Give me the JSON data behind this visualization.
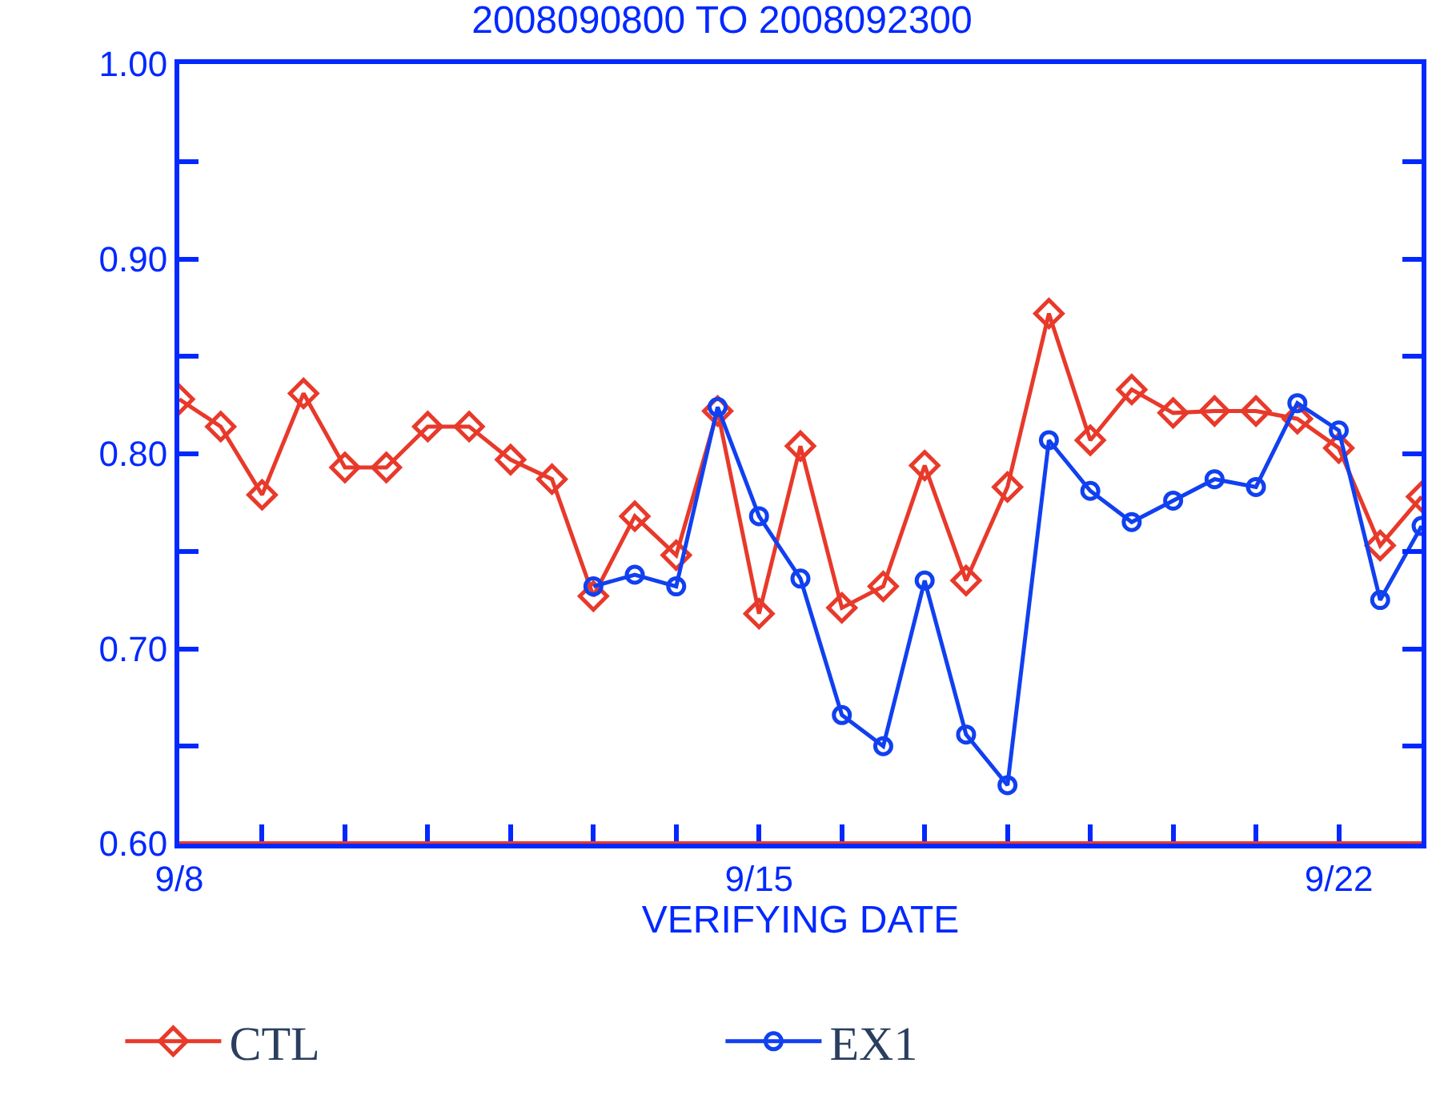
{
  "chart_data": {
    "type": "line",
    "title": "2008090800 TO 2008092300",
    "xlabel": "VERIFYING DATE",
    "x": [
      "2008-09-08T00:00",
      "2008-09-08T12:00",
      "2008-09-09T00:00",
      "2008-09-09T12:00",
      "2008-09-10T00:00",
      "2008-09-10T12:00",
      "2008-09-11T00:00",
      "2008-09-11T12:00",
      "2008-09-12T00:00",
      "2008-09-12T12:00",
      "2008-09-13T00:00",
      "2008-09-13T12:00",
      "2008-09-14T00:00",
      "2008-09-14T12:00",
      "2008-09-15T00:00",
      "2008-09-15T12:00",
      "2008-09-16T00:00",
      "2008-09-16T12:00",
      "2008-09-17T00:00",
      "2008-09-17T12:00",
      "2008-09-18T00:00",
      "2008-09-18T12:00",
      "2008-09-19T00:00",
      "2008-09-19T12:00",
      "2008-09-20T00:00",
      "2008-09-20T12:00",
      "2008-09-21T00:00",
      "2008-09-21T12:00",
      "2008-09-22T00:00",
      "2008-09-22T12:00",
      "2008-09-23T00:00"
    ],
    "series": [
      {
        "name": "CTL",
        "color": "#e8392a",
        "marker": "diamond",
        "values": [
          0.828,
          0.814,
          0.779,
          0.831,
          0.793,
          0.793,
          0.814,
          0.814,
          0.797,
          0.787,
          0.727,
          0.768,
          0.748,
          0.822,
          0.718,
          0.804,
          0.721,
          0.732,
          0.794,
          0.735,
          0.783,
          0.872,
          0.807,
          0.833,
          0.821,
          0.822,
          0.822,
          0.818,
          0.803,
          0.753,
          0.778
        ]
      },
      {
        "name": "EX1",
        "color": "#1040f0",
        "marker": "circle",
        "values": [
          null,
          null,
          null,
          null,
          null,
          null,
          null,
          null,
          null,
          null,
          0.732,
          0.738,
          0.732,
          0.824,
          0.768,
          0.736,
          0.666,
          0.65,
          0.735,
          0.656,
          0.63,
          0.807,
          0.781,
          0.765,
          0.776,
          0.787,
          0.783,
          0.826,
          0.812,
          0.725,
          0.763
        ]
      }
    ],
    "xlim": [
      "2008-09-08",
      "2008-09-23"
    ],
    "xticks": [
      {
        "value": "2008-09-08",
        "label": "9/8"
      },
      {
        "value": "2008-09-09",
        "label": null
      },
      {
        "value": "2008-09-10",
        "label": null
      },
      {
        "value": "2008-09-11",
        "label": null
      },
      {
        "value": "2008-09-12",
        "label": null
      },
      {
        "value": "2008-09-13",
        "label": null
      },
      {
        "value": "2008-09-14",
        "label": null
      },
      {
        "value": "2008-09-15",
        "label": "9/15"
      },
      {
        "value": "2008-09-16",
        "label": null
      },
      {
        "value": "2008-09-17",
        "label": null
      },
      {
        "value": "2008-09-18",
        "label": null
      },
      {
        "value": "2008-09-19",
        "label": null
      },
      {
        "value": "2008-09-20",
        "label": null
      },
      {
        "value": "2008-09-21",
        "label": null
      },
      {
        "value": "2008-09-22",
        "label": "9/22"
      },
      {
        "value": "2008-09-23",
        "label": null
      }
    ],
    "ylim": [
      0.6,
      1.0
    ],
    "yticks": [
      {
        "value": 0.6,
        "label": "0.60"
      },
      {
        "value": 0.65,
        "label": null
      },
      {
        "value": 0.7,
        "label": "0.70"
      },
      {
        "value": 0.75,
        "label": null
      },
      {
        "value": 0.8,
        "label": "0.80"
      },
      {
        "value": 0.85,
        "label": null
      },
      {
        "value": 0.9,
        "label": "0.90"
      },
      {
        "value": 0.95,
        "label": null
      },
      {
        "value": 1.0,
        "label": "1.00"
      }
    ],
    "ref_lines": [
      {
        "axis": "y",
        "value": 0.6,
        "color": "#e8392a"
      }
    ],
    "legend": "bottom",
    "line_style": "solid"
  }
}
